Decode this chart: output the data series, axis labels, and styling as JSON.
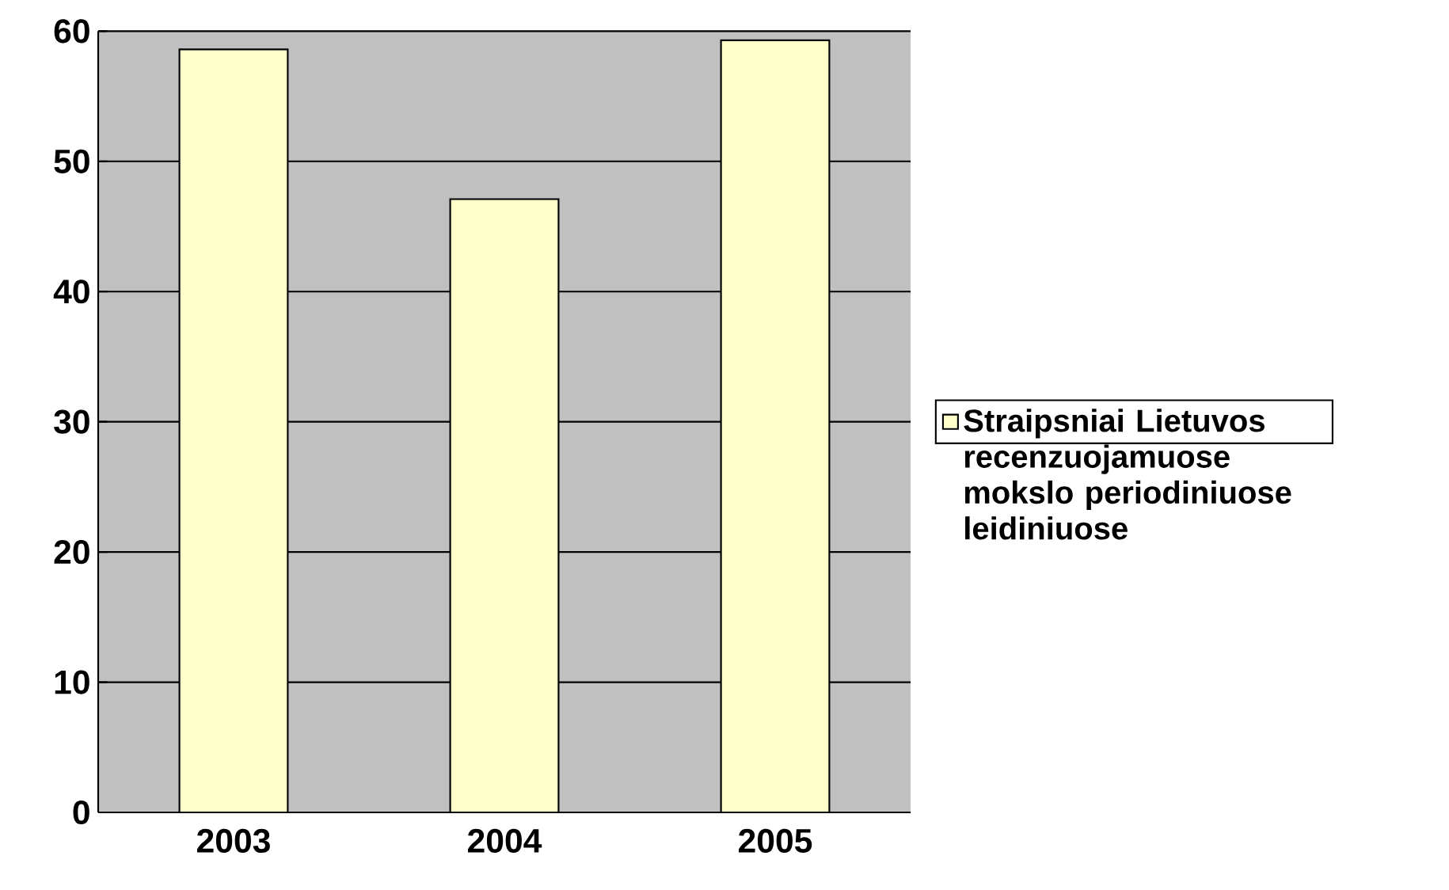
{
  "chart_data": {
    "type": "bar",
    "categories": [
      "2003",
      "2004",
      "2005"
    ],
    "series": [
      {
        "name": "Straipsniai Lietuvos recenzuojamuose mokslo periodiniuose leidiniuose",
        "color": "#ffffcc",
        "values": [
          58.6,
          47.1,
          59.3
        ]
      }
    ],
    "ylim": [
      0,
      60
    ],
    "yticks": [
      0,
      10,
      20,
      30,
      40,
      50,
      60
    ],
    "grid": "y",
    "legend": "right"
  }
}
